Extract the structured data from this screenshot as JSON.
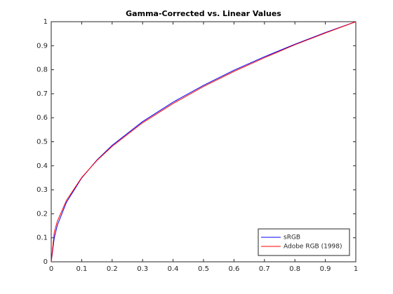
{
  "chart_data": {
    "type": "line",
    "title": "Gamma-Corrected vs. Linear Values",
    "x": [
      0,
      0.01,
      0.02,
      0.05,
      0.1,
      0.15,
      0.2,
      0.3,
      0.4,
      0.5,
      0.6,
      0.7,
      0.8,
      0.9,
      1
    ],
    "series": [
      {
        "name": "sRGB",
        "color": "#0000ff",
        "values": [
          0,
          0.1,
          0.152,
          0.248,
          0.349,
          0.424,
          0.485,
          0.584,
          0.665,
          0.735,
          0.798,
          0.854,
          0.906,
          0.955,
          1
        ]
      },
      {
        "name": "Adobe RGB (1998)",
        "color": "#ff0000",
        "values": [
          0,
          0.123,
          0.169,
          0.256,
          0.351,
          0.422,
          0.481,
          0.579,
          0.659,
          0.73,
          0.793,
          0.85,
          0.904,
          0.953,
          1
        ]
      }
    ],
    "xlim": [
      0,
      1
    ],
    "ylim": [
      0,
      1
    ],
    "xticks": [
      0,
      0.1,
      0.2,
      0.3,
      0.4,
      0.5,
      0.6,
      0.7,
      0.8,
      0.9,
      1
    ],
    "yticks": [
      0,
      0.1,
      0.2,
      0.3,
      0.4,
      0.5,
      0.6,
      0.7,
      0.8,
      0.9,
      1
    ],
    "grid": false,
    "legend": "southeast"
  }
}
